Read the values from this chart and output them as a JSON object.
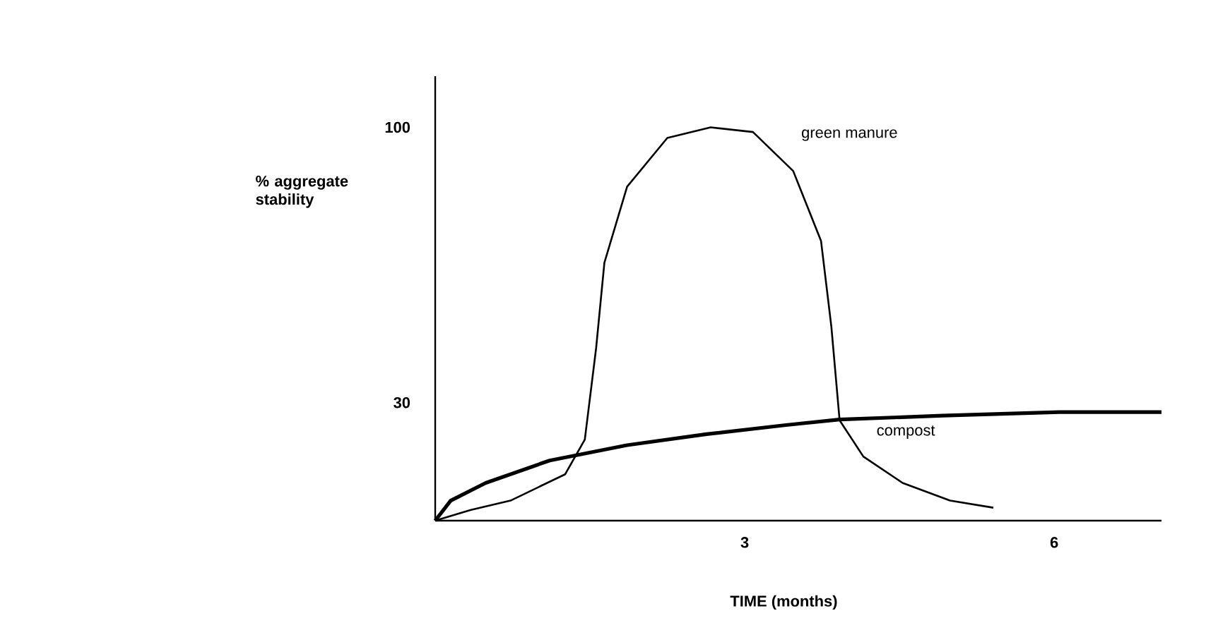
{
  "chart_data": {
    "type": "line",
    "xlabel": "TIME (months)",
    "ylabel": "% aggregate stability",
    "xlim": [
      0,
      7.04
    ],
    "ylim": [
      0,
      113
    ],
    "xticks": [
      3,
      6
    ],
    "yticks": [
      30,
      100
    ],
    "grid": false,
    "legend": false,
    "marker": "none",
    "line_style": "solid",
    "series": [
      {
        "name": "green manure",
        "color": "#000000",
        "x": [
          0,
          0.34,
          0.73,
          1.26,
          1.45,
          1.56,
          1.64,
          1.86,
          2.25,
          2.67,
          3.08,
          3.47,
          3.74,
          3.84,
          3.92,
          4.15,
          4.53,
          4.99,
          5.41
        ],
        "values": [
          0,
          2.7,
          5.1,
          11.8,
          20.6,
          43.9,
          65.6,
          84.9,
          97.3,
          100,
          98.8,
          88.9,
          71.1,
          49.3,
          25.5,
          16.3,
          9.6,
          5.1,
          3.3
        ]
      },
      {
        "name": "compost",
        "color": "#000000",
        "x": [
          0,
          0.15,
          0.49,
          1.11,
          1.86,
          2.63,
          3.4,
          3.92,
          4.92,
          6.05,
          7.04
        ],
        "values": [
          0,
          5.1,
          9.6,
          15.3,
          19.2,
          22.0,
          24.3,
          25.7,
          26.7,
          27.6,
          27.6
        ]
      }
    ]
  }
}
